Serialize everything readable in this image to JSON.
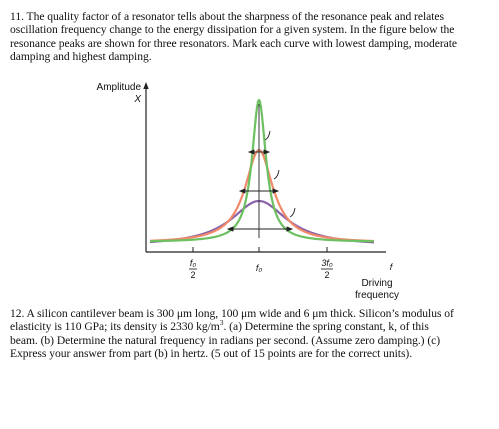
{
  "question11": {
    "lines": [
      "11. The quality factor of a resonator tells about the sharpness of the resonance peak and relates",
      "oscillation frequency change to the energy dissipation for a given system. In the figure below the",
      "resonance peaks are shown for three resonators. Mark each curve with lowest damping, moderate",
      "damping and highest damping."
    ]
  },
  "figure": {
    "y_axis_label_1": "Amplitude",
    "y_axis_label_2": "X",
    "x_axis_label": "f",
    "tick_half_num": "f₀",
    "tick_half_den": "2",
    "tick_f0": "f₀",
    "tick_three_half_num": "3f₀",
    "tick_three_half_den": "2",
    "driving_label_1": "Driving",
    "driving_label_2": "frequency",
    "colors": {
      "lowest_damping_curve": "#6cc060",
      "moderate_damping_curve": "#f08a6a",
      "highest_damping_curve": "#8a62a8",
      "axis": "#222222"
    }
  },
  "question12": {
    "line1": "12. A silicon cantilever beam is 300 μm long, 100 μm wide and 6 μm thick. Silicon’s modulus of",
    "line2a": "elasticity is 110 GPa; its density is 2330 kg/m",
    "line2sup": "3",
    "line2b": ". (a) Determine the spring constant, k, of this",
    "line3": "beam. (b) Determine the natural frequency in radians per second. (Assume zero damping.) (c)",
    "line4": "Express your answer from part (b) in hertz. (5 out of 15 points are for the correct units)."
  }
}
